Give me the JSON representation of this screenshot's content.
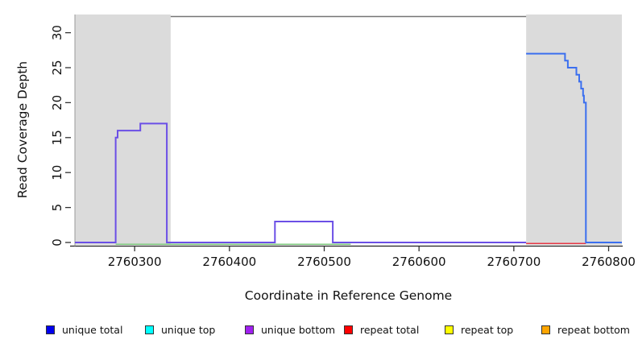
{
  "figure": {
    "x_axis_title": "Coordinate in Reference Genome",
    "y_axis_title": "Read Coverage Depth"
  },
  "chart_data": {
    "type": "line",
    "title": "",
    "xlabel": "Coordinate in Reference Genome",
    "ylabel": "Read Coverage Depth",
    "xlim": [
      2760237,
      2760814
    ],
    "ylim": [
      0,
      32.5
    ],
    "x_ticks": [
      2760300,
      2760400,
      2760500,
      2760600,
      2760700,
      2760800
    ],
    "y_ticks": [
      0,
      5,
      10,
      15,
      20,
      25,
      30
    ],
    "grid": false,
    "legend_position": "bottom",
    "shaded_regions": [
      {
        "x0": 2760237,
        "x1": 2760338,
        "color": "#dbdbdb"
      },
      {
        "x0": 2760713,
        "x1": 2760814,
        "color": "#dbdbdb"
      }
    ],
    "series": [
      {
        "name": "green baseline",
        "color": "#7cc87c",
        "width": 1.5,
        "step_points": [
          [
            2760280,
            0
          ],
          [
            2760528,
            0
          ]
        ]
      },
      {
        "name": "unique bottom",
        "color": "#6b4fe6",
        "width": 2,
        "step_points": [
          [
            2760237,
            0
          ],
          [
            2760280,
            15
          ],
          [
            2760282,
            16
          ],
          [
            2760306,
            17
          ],
          [
            2760334,
            0
          ],
          [
            2760448,
            3
          ],
          [
            2760509,
            0
          ],
          [
            2760713,
            0
          ]
        ]
      },
      {
        "name": "repeat total",
        "color": "#e63946",
        "width": 1.5,
        "step_points": [
          [
            2760713,
            0
          ],
          [
            2760776,
            0
          ]
        ]
      },
      {
        "name": "unique total",
        "color": "#3b6fef",
        "width": 2,
        "step_points": [
          [
            2760713,
            27
          ],
          [
            2760754,
            26
          ],
          [
            2760757,
            25
          ],
          [
            2760766,
            24
          ],
          [
            2760769,
            23
          ],
          [
            2760771,
            22
          ],
          [
            2760773,
            21
          ],
          [
            2760774,
            20
          ],
          [
            2760776,
            0
          ],
          [
            2760814,
            0
          ]
        ]
      }
    ]
  },
  "legend": {
    "items": [
      {
        "label": "unique total",
        "color": "#0000ee"
      },
      {
        "label": "unique top",
        "color": "#00ffff"
      },
      {
        "label": "unique bottom",
        "color": "#a020f0"
      },
      {
        "label": "repeat total",
        "color": "#ff0000"
      },
      {
        "label": "repeat top",
        "color": "#ffff00"
      },
      {
        "label": "repeat bottom",
        "color": "#ffa500"
      }
    ]
  }
}
